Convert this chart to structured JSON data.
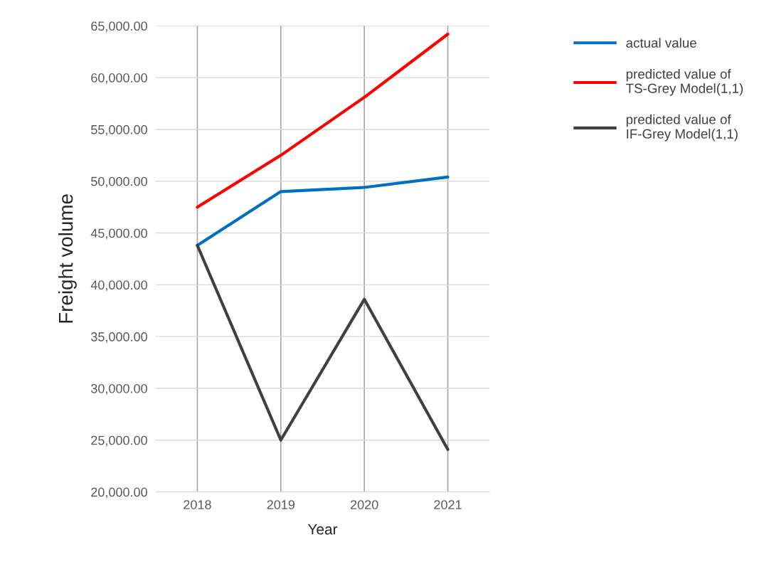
{
  "chart_data": {
    "type": "line",
    "xlabel": "Year",
    "ylabel": "Freight volume",
    "categories": [
      "2018",
      "2019",
      "2020",
      "2021"
    ],
    "series": [
      {
        "name": "actual value",
        "color": "#0070c0",
        "values": [
          43800,
          49000,
          49400,
          50400
        ]
      },
      {
        "name": "predicted value of TS-Grey Model(1,1)",
        "color": "#ff0000",
        "values": [
          47500,
          52500,
          58100,
          64200
        ]
      },
      {
        "name": "predicted value of IF-Grey Model(1,1)",
        "color": "#404040",
        "values": [
          43800,
          25000,
          38600,
          24100
        ]
      }
    ],
    "ylim": [
      20000,
      65000
    ],
    "yticks": [
      {
        "value": 20000,
        "label": "20,000.00"
      },
      {
        "value": 25000,
        "label": "25,000.00"
      },
      {
        "value": 30000,
        "label": "30,000.00"
      },
      {
        "value": 35000,
        "label": "35,000.00"
      },
      {
        "value": 40000,
        "label": "40,000.00"
      },
      {
        "value": 45000,
        "label": "45,000.00"
      },
      {
        "value": 50000,
        "label": "50,000.00"
      },
      {
        "value": 55000,
        "label": "55,000.00"
      },
      {
        "value": 60000,
        "label": "60,000.00"
      },
      {
        "value": 65000,
        "label": "65,000.00"
      }
    ],
    "grid": true,
    "legend": "top right",
    "marker": "none",
    "line_style": "solid"
  }
}
